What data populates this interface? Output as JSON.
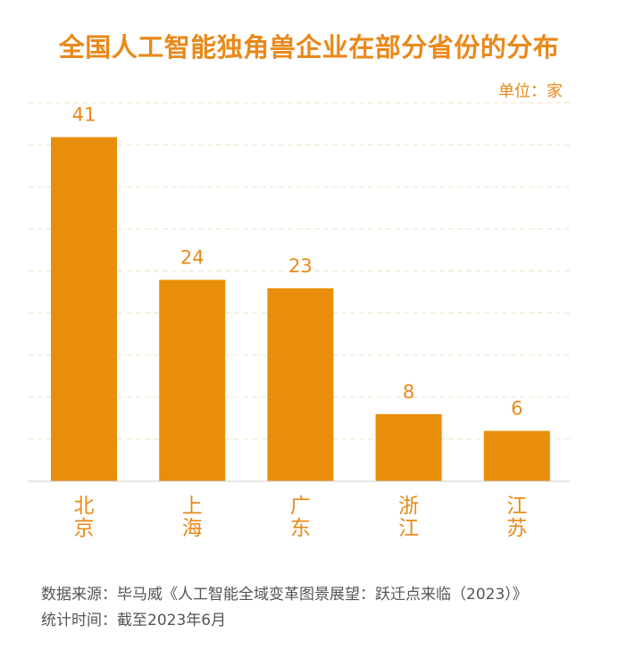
{
  "chart_data": {
    "type": "bar",
    "title": "全国人工智能独角兽企业在部分省份的分布",
    "unit_label": "单位：家",
    "categories": [
      "北京",
      "上海",
      "广东",
      "浙江",
      "江苏"
    ],
    "values": [
      41,
      24,
      23,
      8,
      6
    ],
    "ylim": [
      0,
      45
    ],
    "grid": true,
    "bar_color": "#E98E0A",
    "label_color": "#E9891A"
  },
  "footer": {
    "source": "数据来源：毕马威《人工智能全域变革图景展望：跃迁点来临（2023）》",
    "stat_time": "统计时间：截至2023年6月"
  }
}
